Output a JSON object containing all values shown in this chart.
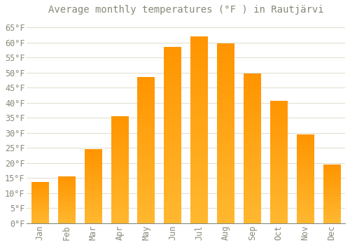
{
  "title": "Average monthly temperatures (°F ) in Rautjärvi",
  "months": [
    "Jan",
    "Feb",
    "Mar",
    "Apr",
    "May",
    "Jun",
    "Jul",
    "Aug",
    "Sep",
    "Oct",
    "Nov",
    "Dec"
  ],
  "values": [
    13.5,
    15.5,
    24.5,
    35.5,
    48.5,
    58.5,
    62.0,
    59.5,
    49.5,
    40.5,
    29.5,
    19.5
  ],
  "bar_color": "#FFA500",
  "bar_edge_color": "none",
  "background_color": "#FFFFFF",
  "plot_bg_color": "#FFFFFF",
  "grid_color": "#DDDDCC",
  "text_color": "#888878",
  "ylim": [
    0,
    68
  ],
  "yticks": [
    0,
    5,
    10,
    15,
    20,
    25,
    30,
    35,
    40,
    45,
    50,
    55,
    60,
    65
  ],
  "title_fontsize": 10,
  "tick_fontsize": 8.5
}
